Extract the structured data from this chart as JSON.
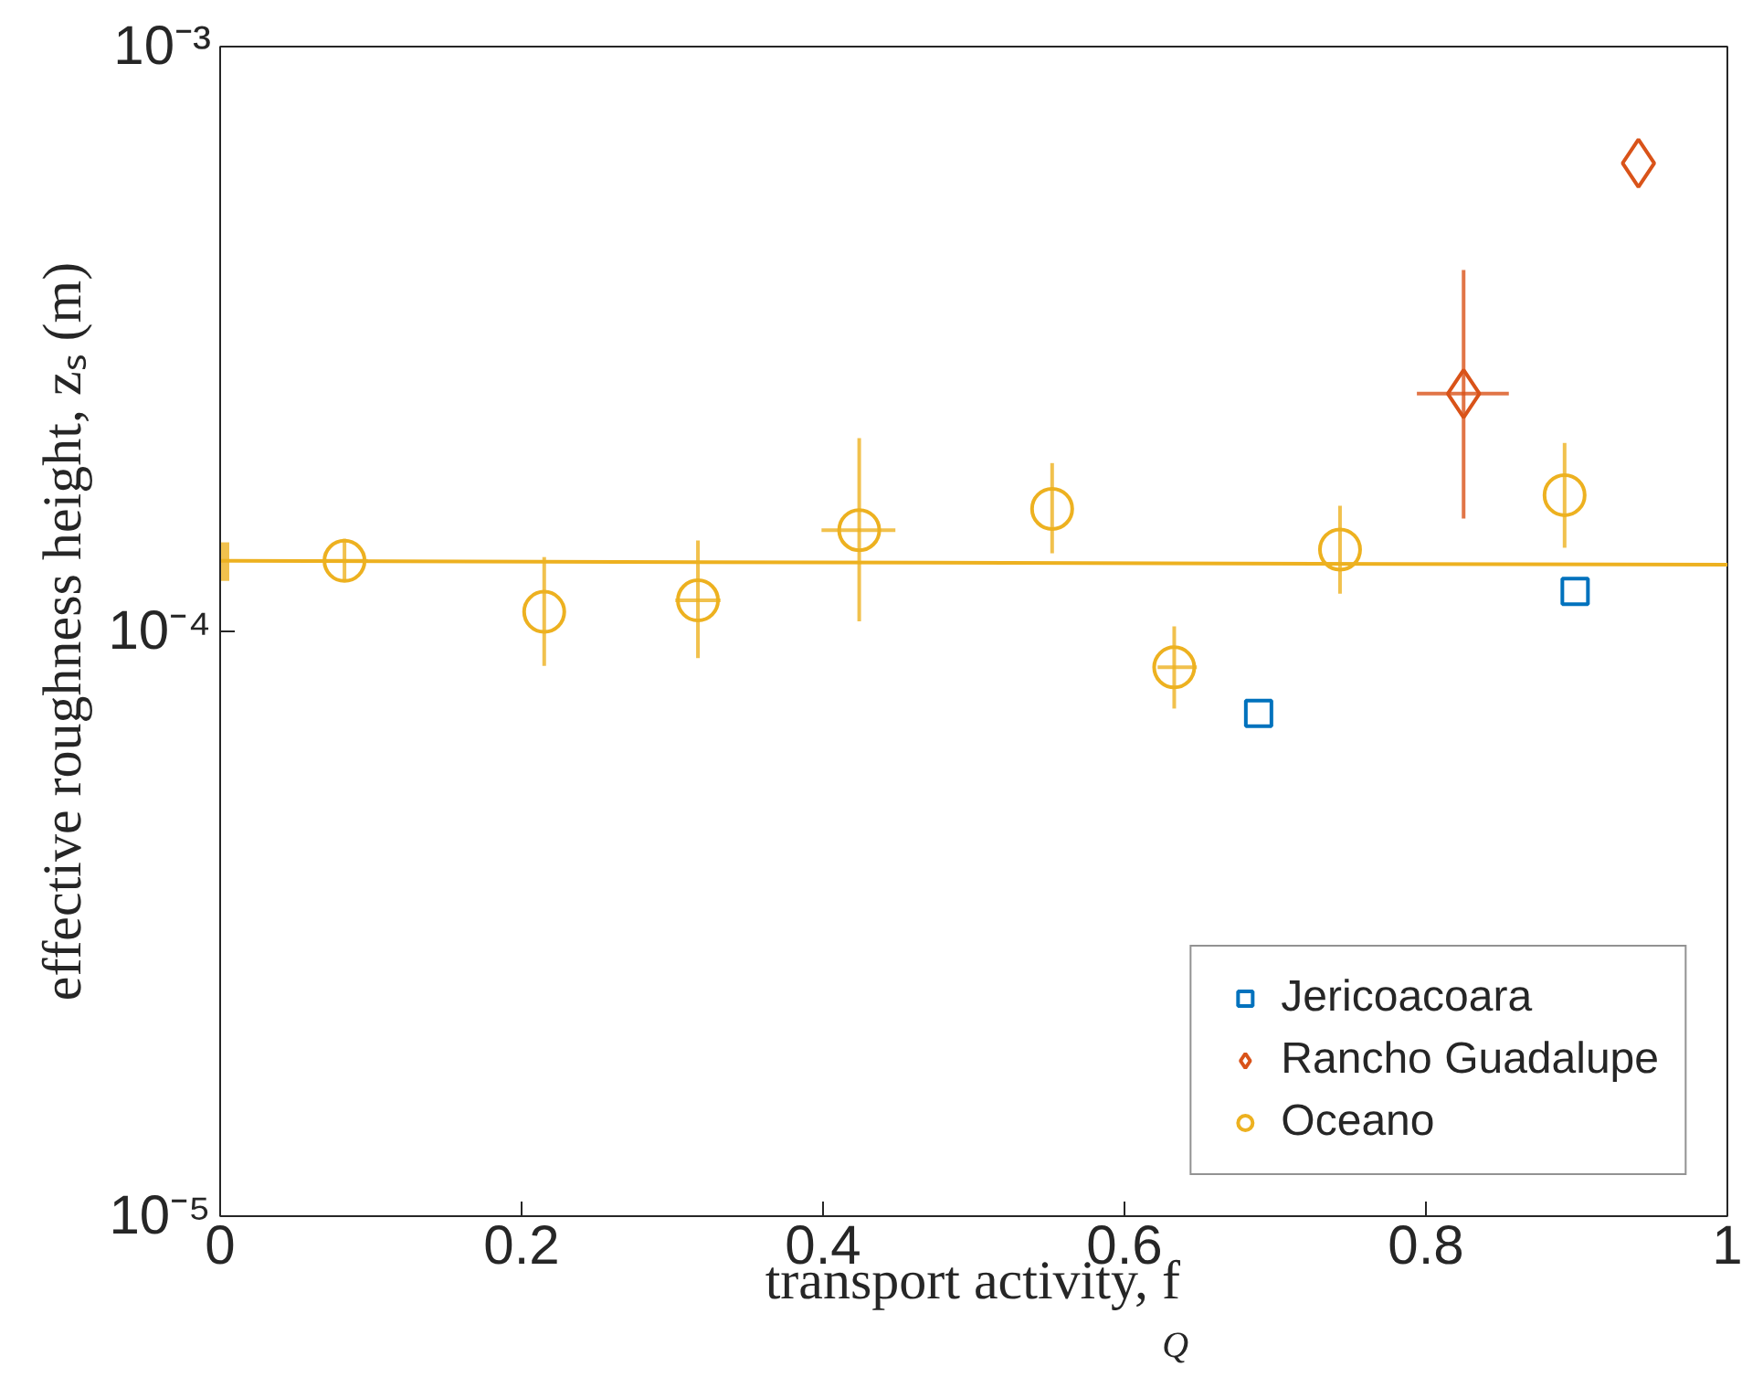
{
  "chart_data": {
    "type": "scatter",
    "xlabel": "transport activity, f$_{Q}$",
    "ylabel": "effective roughness height, zₛ (m)",
    "log": "y",
    "xlim": [
      0,
      1
    ],
    "xticks": [
      0,
      0.2,
      0.4,
      0.6,
      0.8,
      1
    ],
    "ylim": [
      1e-05,
      0.001
    ],
    "yticks": [
      {
        "value": 1e-05,
        "label": "10⁻⁵"
      },
      {
        "value": 0.0001,
        "label": "10⁻⁴"
      },
      {
        "value": 0.001,
        "label": "10⁻³"
      }
    ],
    "grid": false,
    "legend": "bottom right",
    "series": [
      {
        "name": "Jericoacoara",
        "color": "#0072bd",
        "marker": "square",
        "x": [
          0.689,
          0.899
        ],
        "values": [
          7.24e-05,
          0.000117
        ]
      },
      {
        "name": "Rancho Guadalupe",
        "color": "#d95319",
        "marker": "diamond",
        "x": [
          0.825,
          0.941
        ],
        "values": [
          0.000255,
          0.000632
        ],
        "errors": [
          [
            0.000156,
            0.000415
          ],
          null
        ],
        "xerrors": [
          [
            0.794,
            0.855
          ],
          null
        ]
      },
      {
        "name": "Oceano",
        "color": "#edb120",
        "marker": "circle",
        "x": [
          0.0825,
          0.215,
          0.317,
          0.424,
          0.552,
          0.633,
          0.743,
          0.892
        ],
        "values": [
          0.000132,
          0.000108,
          0.000113,
          0.000149,
          0.000162,
          8.68e-05,
          0.000138,
          0.000171
        ],
        "errors": [
          [
            0.000122,
            0.000144
          ],
          [
            8.73e-05,
            0.000134
          ],
          [
            9e-05,
            0.000143
          ],
          [
            0.000104,
            0.000214
          ],
          [
            0.000136,
            0.000194
          ],
          [
            7.38e-05,
            0.000102
          ],
          [
            0.000116,
            0.000164
          ],
          [
            0.000139,
            0.00021
          ]
        ],
        "xerrors": [
          [
            0.068,
            0.098
          ],
          null,
          [
            0.302,
            0.332
          ],
          [
            0.399,
            0.448
          ],
          null,
          [
            0.622,
            0.648
          ],
          null,
          null
        ]
      },
      {
        "type": "line",
        "color": "#edb120",
        "marker": "none",
        "x": [
          0,
          1
        ],
        "values": [
          0.000132,
          0.00013
        ],
        "errors": [
          [
            0.000122,
            0.000142
          ],
          null
        ]
      }
    ]
  }
}
